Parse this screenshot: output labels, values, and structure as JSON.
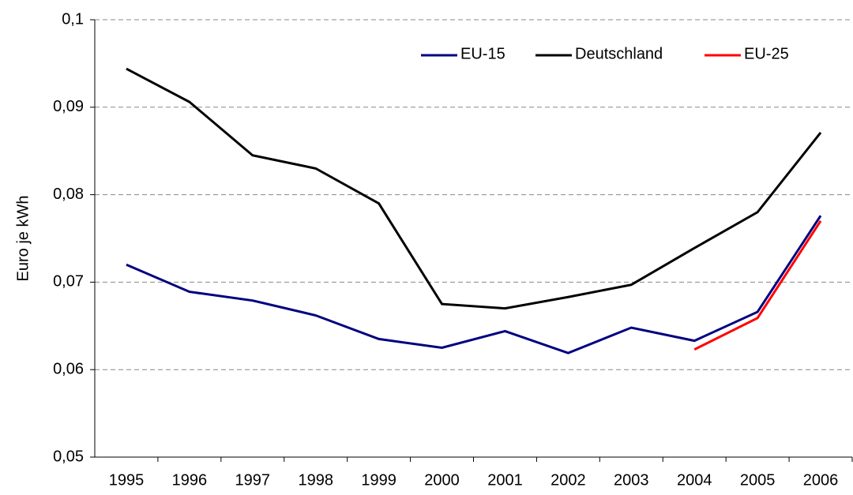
{
  "chart_data": {
    "type": "line",
    "y_label": "Euro je kWh",
    "categories": [
      "1995",
      "1996",
      "1997",
      "1998",
      "1999",
      "2000",
      "2001",
      "2002",
      "2003",
      "2004",
      "2005",
      "2006"
    ],
    "series": [
      {
        "name": "EU-15",
        "color": "#000080",
        "values": [
          0.072,
          0.0689,
          0.0679,
          0.0662,
          0.0635,
          0.0625,
          0.0644,
          0.0619,
          0.0648,
          0.0633,
          0.0666,
          0.0776
        ]
      },
      {
        "name": "Deutschland",
        "color": "#000000",
        "values": [
          0.0944,
          0.0906,
          0.0845,
          0.083,
          0.079,
          0.0675,
          0.067,
          0.0683,
          0.0697,
          0.0739,
          0.078,
          0.0871
        ]
      },
      {
        "name": "EU-25",
        "color": "#ff0000",
        "values": [
          null,
          null,
          null,
          null,
          null,
          null,
          null,
          null,
          null,
          0.0623,
          0.0659,
          0.077
        ]
      }
    ],
    "ylim": [
      0.05,
      0.1
    ],
    "yticks": [
      {
        "value": 0.05,
        "label": "0,05"
      },
      {
        "value": 0.06,
        "label": "0,06"
      },
      {
        "value": 0.07,
        "label": "0,07"
      },
      {
        "value": 0.08,
        "label": "0,08"
      },
      {
        "value": 0.09,
        "label": "0,09"
      },
      {
        "value": 0.1,
        "label": "0,1"
      }
    ],
    "grid": true,
    "legend": "top-right"
  }
}
